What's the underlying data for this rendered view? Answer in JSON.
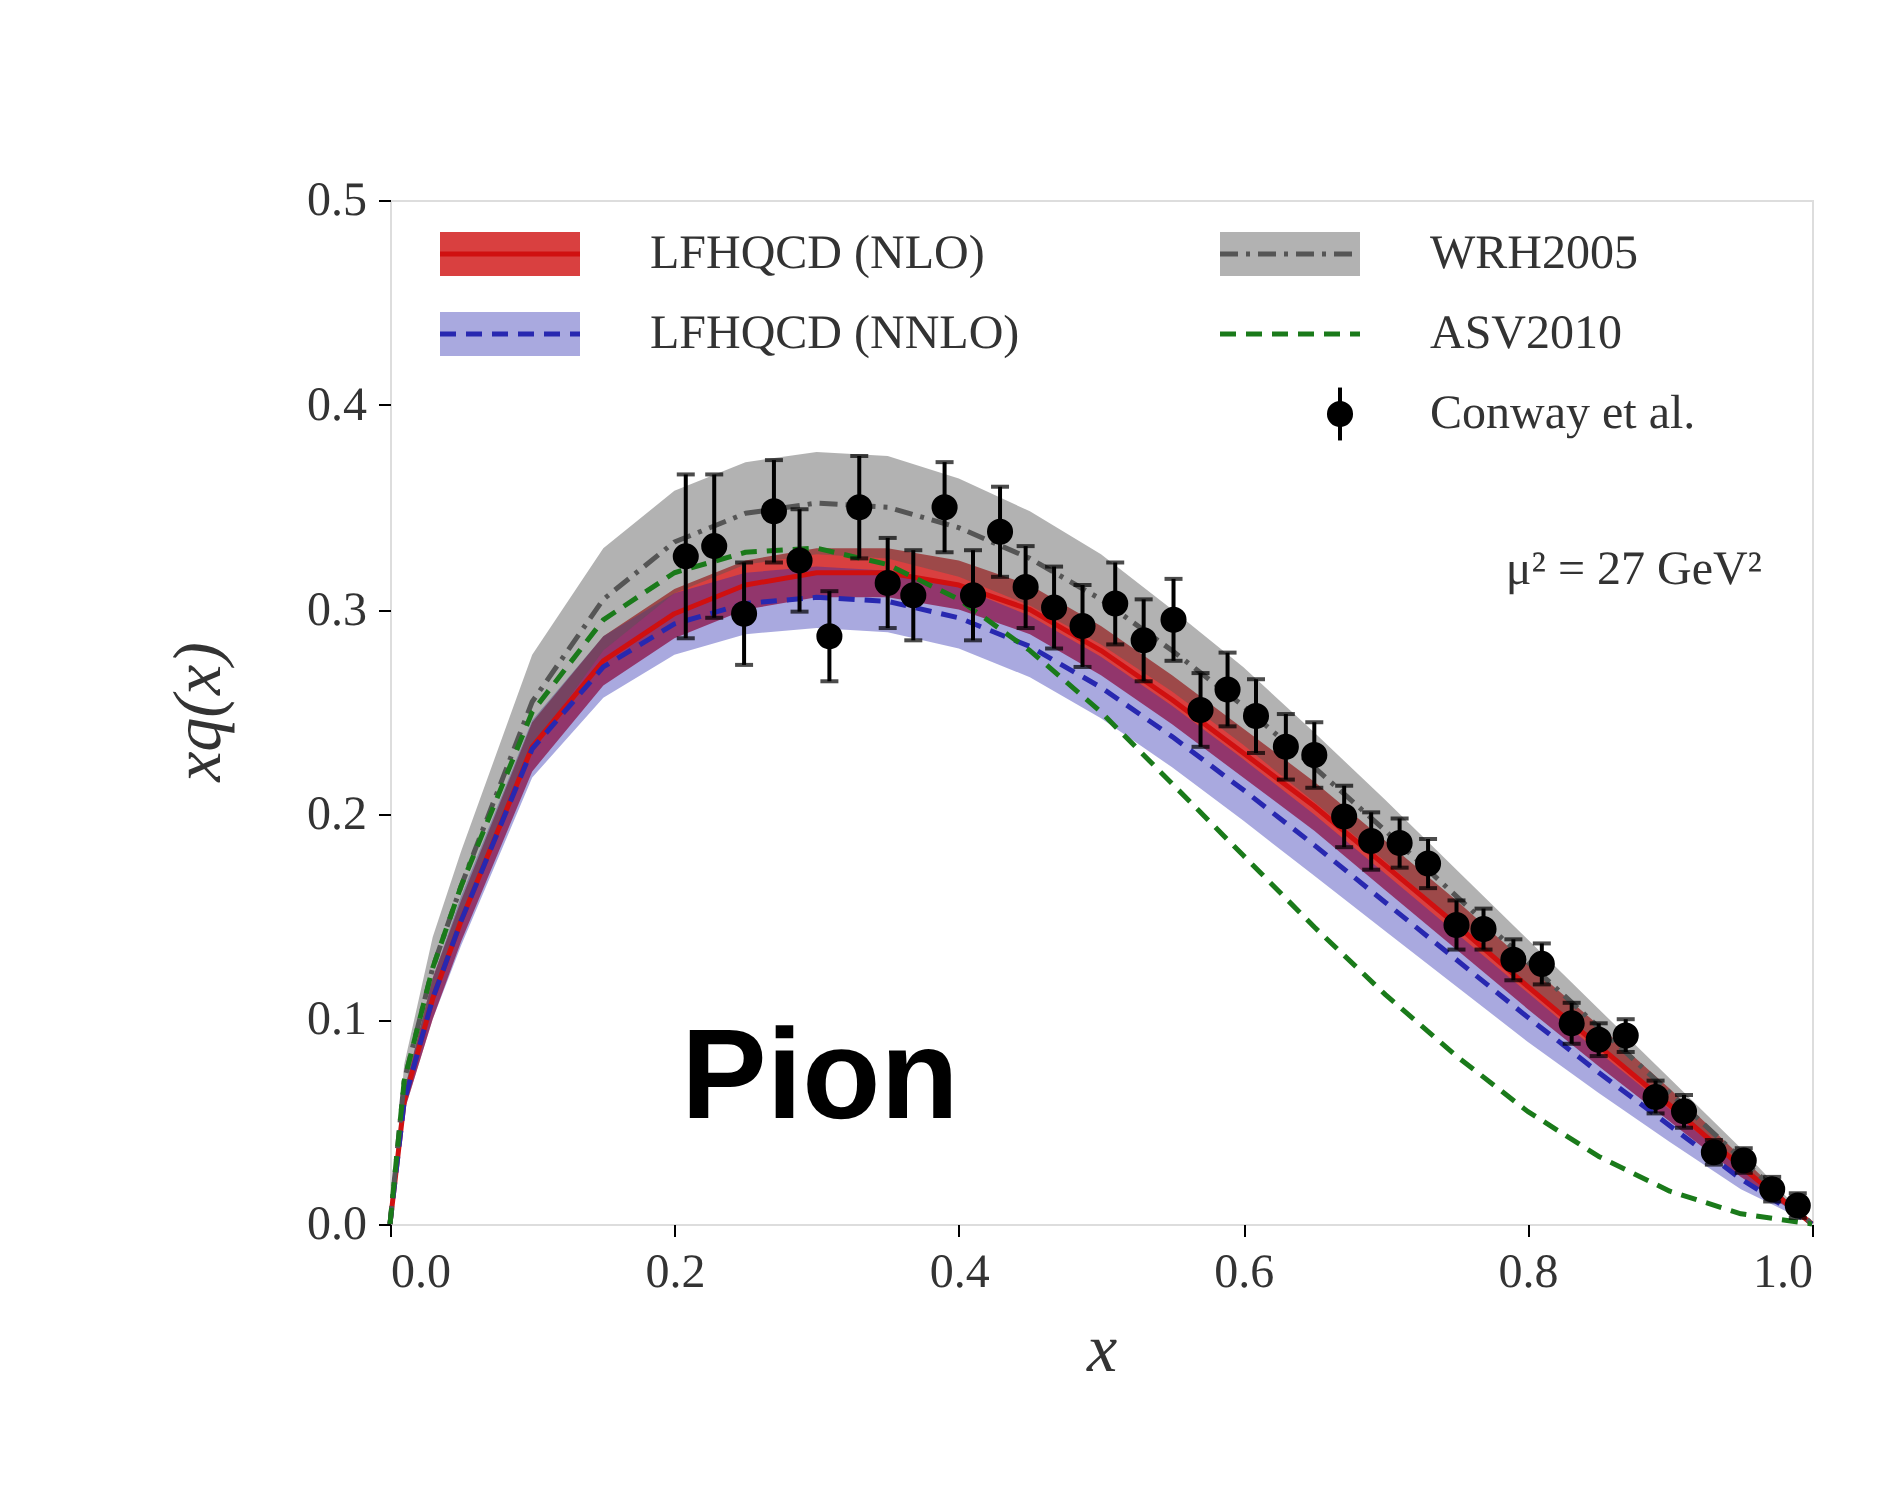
{
  "chart_data": {
    "type": "line",
    "xlabel": "x",
    "ylabel": "xq(x)",
    "xlim": [
      0,
      1
    ],
    "ylim": [
      0,
      0.5
    ],
    "xticks": [
      {
        "value": 0,
        "label": "0.0"
      },
      0.2,
      0.4,
      0.6,
      0.8,
      {
        "value": 1,
        "label": "1.0"
      }
    ],
    "yticks": [
      {
        "value": 0,
        "label": "0.0"
      },
      0.1,
      0.2,
      0.3,
      0.4,
      0.5
    ],
    "grid": false,
    "legend": "top left",
    "annotations": [
      "Pion",
      "μ² = 27 GeV²"
    ],
    "series": [
      {
        "name": "LFHQCD (NLO)",
        "color": "#d01010",
        "line_style": "solid",
        "x": [
          0,
          0.01,
          0.03,
          0.05,
          0.1,
          0.15,
          0.2,
          0.25,
          0.3,
          0.35,
          0.4,
          0.45,
          0.5,
          0.55,
          0.6,
          0.65,
          0.7,
          0.75,
          0.8,
          0.85,
          0.9,
          0.95,
          1.0
        ],
        "values": [
          0,
          0.06,
          0.11,
          0.148,
          0.233,
          0.275,
          0.298,
          0.312,
          0.318,
          0.318,
          0.312,
          0.3,
          0.28,
          0.256,
          0.23,
          0.204,
          0.175,
          0.146,
          0.116,
          0.087,
          0.058,
          0.028,
          0
        ],
        "lower": [
          0,
          0.055,
          0.1,
          0.138,
          0.221,
          0.263,
          0.286,
          0.3,
          0.306,
          0.306,
          0.3,
          0.288,
          0.268,
          0.244,
          0.218,
          0.192,
          0.163,
          0.134,
          0.105,
          0.077,
          0.05,
          0.023,
          0
        ],
        "upper": [
          0,
          0.065,
          0.12,
          0.158,
          0.245,
          0.287,
          0.31,
          0.324,
          0.33,
          0.33,
          0.324,
          0.312,
          0.292,
          0.268,
          0.242,
          0.216,
          0.187,
          0.158,
          0.127,
          0.097,
          0.066,
          0.033,
          0
        ]
      },
      {
        "name": "LFHQCD (NNLO)",
        "color": "#2828b0",
        "line_style": "dashed",
        "x": [
          0,
          0.01,
          0.03,
          0.05,
          0.1,
          0.15,
          0.2,
          0.25,
          0.3,
          0.35,
          0.4,
          0.45,
          0.5,
          0.55,
          0.6,
          0.65,
          0.7,
          0.75,
          0.8,
          0.85,
          0.9,
          0.95,
          1.0
        ],
        "values": [
          0,
          0.06,
          0.11,
          0.148,
          0.232,
          0.272,
          0.293,
          0.303,
          0.306,
          0.304,
          0.296,
          0.282,
          0.262,
          0.238,
          0.212,
          0.185,
          0.157,
          0.129,
          0.101,
          0.074,
          0.048,
          0.022,
          0
        ],
        "lower": [
          0,
          0.055,
          0.1,
          0.136,
          0.218,
          0.257,
          0.278,
          0.288,
          0.291,
          0.289,
          0.281,
          0.267,
          0.247,
          0.223,
          0.197,
          0.17,
          0.143,
          0.116,
          0.089,
          0.064,
          0.04,
          0.017,
          0
        ],
        "upper": [
          0,
          0.065,
          0.12,
          0.16,
          0.246,
          0.287,
          0.308,
          0.318,
          0.321,
          0.319,
          0.311,
          0.297,
          0.277,
          0.253,
          0.227,
          0.2,
          0.171,
          0.142,
          0.113,
          0.084,
          0.056,
          0.027,
          0
        ]
      },
      {
        "name": "WRH2005",
        "color": "#555555",
        "line_style": "dashdot",
        "x": [
          0,
          0.01,
          0.03,
          0.05,
          0.1,
          0.15,
          0.2,
          0.25,
          0.3,
          0.35,
          0.4,
          0.45,
          0.5,
          0.55,
          0.6,
          0.65,
          0.7,
          0.75,
          0.8,
          0.85,
          0.9,
          0.95,
          1.0
        ],
        "values": [
          0,
          0.07,
          0.125,
          0.165,
          0.255,
          0.305,
          0.333,
          0.347,
          0.352,
          0.35,
          0.34,
          0.325,
          0.305,
          0.28,
          0.253,
          0.223,
          0.192,
          0.16,
          0.128,
          0.096,
          0.064,
          0.032,
          0
        ],
        "lower": [
          0,
          0.062,
          0.11,
          0.148,
          0.232,
          0.28,
          0.308,
          0.322,
          0.327,
          0.325,
          0.316,
          0.302,
          0.283,
          0.26,
          0.234,
          0.206,
          0.177,
          0.147,
          0.117,
          0.087,
          0.057,
          0.027,
          0
        ],
        "upper": [
          0,
          0.078,
          0.14,
          0.182,
          0.278,
          0.33,
          0.358,
          0.372,
          0.377,
          0.375,
          0.364,
          0.348,
          0.327,
          0.3,
          0.272,
          0.24,
          0.207,
          0.173,
          0.139,
          0.105,
          0.071,
          0.037,
          0
        ]
      },
      {
        "name": "ASV2010",
        "color": "#1a7a1a",
        "line_style": "dashed",
        "x": [
          0,
          0.01,
          0.03,
          0.05,
          0.1,
          0.15,
          0.2,
          0.25,
          0.3,
          0.35,
          0.4,
          0.45,
          0.5,
          0.55,
          0.6,
          0.65,
          0.7,
          0.75,
          0.8,
          0.85,
          0.9,
          0.95,
          1.0
        ],
        "values": [
          0,
          0.07,
          0.125,
          0.165,
          0.25,
          0.295,
          0.318,
          0.328,
          0.33,
          0.322,
          0.305,
          0.28,
          0.25,
          0.215,
          0.18,
          0.145,
          0.112,
          0.082,
          0.055,
          0.033,
          0.016,
          0.005,
          0
        ]
      },
      {
        "name": "Conway et al.",
        "type": "scatter",
        "color": "#000000",
        "marker": "circle",
        "x": [
          0.208,
          0.228,
          0.249,
          0.27,
          0.288,
          0.309,
          0.33,
          0.35,
          0.368,
          0.39,
          0.41,
          0.429,
          0.447,
          0.467,
          0.487,
          0.51,
          0.53,
          0.551,
          0.57,
          0.589,
          0.609,
          0.63,
          0.65,
          0.671,
          0.69,
          0.71,
          0.73,
          0.75,
          0.769,
          0.79,
          0.81,
          0.831,
          0.85,
          0.869,
          0.89,
          0.91,
          0.931,
          0.952,
          0.972,
          0.99
        ],
        "values": [
          0.326,
          0.331,
          0.298,
          0.348,
          0.324,
          0.287,
          0.35,
          0.313,
          0.307,
          0.35,
          0.307,
          0.338,
          0.311,
          0.301,
          0.292,
          0.303,
          0.285,
          0.295,
          0.251,
          0.261,
          0.248,
          0.233,
          0.229,
          0.199,
          0.187,
          0.186,
          0.176,
          0.146,
          0.144,
          0.129,
          0.127,
          0.098,
          0.09,
          0.092,
          0.062,
          0.055,
          0.035,
          0.031,
          0.017,
          0.009
        ],
        "errors": [
          0.04,
          0.035,
          0.025,
          0.025,
          0.025,
          0.022,
          0.025,
          0.022,
          0.022,
          0.022,
          0.022,
          0.022,
          0.02,
          0.02,
          0.02,
          0.02,
          0.02,
          0.02,
          0.018,
          0.018,
          0.018,
          0.016,
          0.016,
          0.015,
          0.014,
          0.012,
          0.012,
          0.012,
          0.01,
          0.01,
          0.01,
          0.01,
          0.008,
          0.008,
          0.008,
          0.008,
          0.006,
          0.006,
          0.006,
          0.006
        ]
      }
    ]
  }
}
